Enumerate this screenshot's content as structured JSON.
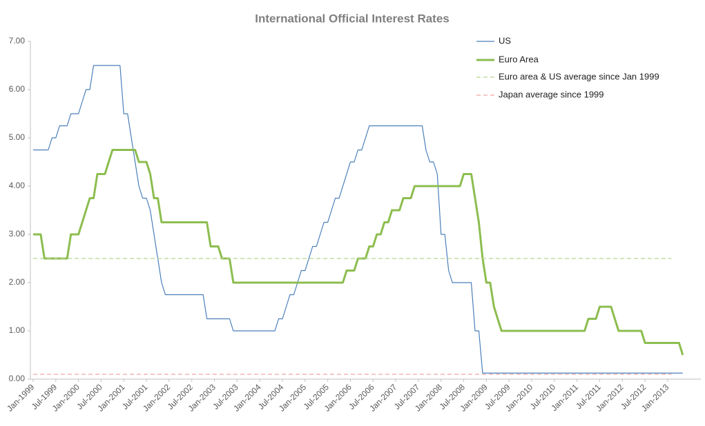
{
  "chart_data": {
    "type": "line",
    "title": "International Official Interest Rates",
    "categories": [
      "Jan-1999",
      null,
      null,
      null,
      null,
      null,
      "Jul-1999",
      null,
      null,
      null,
      null,
      null,
      "Jan-2000",
      null,
      null,
      null,
      null,
      null,
      "Jul-2000",
      null,
      null,
      null,
      null,
      null,
      "Jan-2001",
      null,
      null,
      null,
      null,
      null,
      "Jul-2001",
      null,
      null,
      null,
      null,
      null,
      "Jan-2002",
      null,
      null,
      null,
      null,
      null,
      "Jul-2002",
      null,
      null,
      null,
      null,
      null,
      "Jan-2003",
      null,
      null,
      null,
      null,
      null,
      "Jul-2003",
      null,
      null,
      null,
      null,
      null,
      "Jan-2004",
      null,
      null,
      null,
      null,
      null,
      "Jul-2004",
      null,
      null,
      null,
      null,
      null,
      "Jan-2005",
      null,
      null,
      null,
      null,
      null,
      "Jul-2005",
      null,
      null,
      null,
      null,
      null,
      "Jan-2006",
      null,
      null,
      null,
      null,
      null,
      "Jul-2006",
      null,
      null,
      null,
      null,
      null,
      "Jan-2007",
      null,
      null,
      null,
      null,
      null,
      "Jul-2007",
      null,
      null,
      null,
      null,
      null,
      "Jan-2008",
      null,
      null,
      null,
      null,
      null,
      "Jul-2008",
      null,
      null,
      null,
      null,
      null,
      "Jan-2009",
      null,
      null,
      null,
      null,
      null,
      "Jul-2009",
      null,
      null,
      null,
      null,
      null,
      "Jan-2010",
      null,
      null,
      null,
      null,
      null,
      "Jul-2010",
      null,
      null,
      null,
      null,
      null,
      "Jan-2011",
      null,
      null,
      null,
      null,
      null,
      "Jul-2011",
      null,
      null,
      null,
      null,
      null,
      "Jan-2012",
      null,
      null,
      null,
      null,
      null,
      "Jul-2012",
      null,
      null,
      null,
      null,
      null,
      "Jan-2013",
      null,
      null,
      null,
      null
    ],
    "series": [
      {
        "name": "US",
        "color": "#4a7ebb",
        "line_style": "solid",
        "values": [
          4.75,
          4.75,
          4.75,
          4.75,
          4.75,
          5,
          5,
          5.25,
          5.25,
          5.25,
          5.5,
          5.5,
          5.5,
          5.75,
          6,
          6,
          6.5,
          6.5,
          6.5,
          6.5,
          6.5,
          6.5,
          6.5,
          6.5,
          5.5,
          5.5,
          5,
          4.5,
          4,
          3.75,
          3.75,
          3.5,
          3,
          2.5,
          2,
          1.75,
          1.75,
          1.75,
          1.75,
          1.75,
          1.75,
          1.75,
          1.75,
          1.75,
          1.75,
          1.75,
          1.25,
          1.25,
          1.25,
          1.25,
          1.25,
          1.25,
          1.25,
          1,
          1,
          1,
          1,
          1,
          1,
          1,
          1,
          1,
          1,
          1,
          1,
          1.25,
          1.25,
          1.5,
          1.75,
          1.75,
          2,
          2.25,
          2.25,
          2.5,
          2.75,
          2.75,
          3,
          3.25,
          3.25,
          3.5,
          3.75,
          3.75,
          4,
          4.25,
          4.5,
          4.5,
          4.75,
          4.75,
          5,
          5.25,
          5.25,
          5.25,
          5.25,
          5.25,
          5.25,
          5.25,
          5.25,
          5.25,
          5.25,
          5.25,
          5.25,
          5.25,
          5.25,
          5.25,
          4.75,
          4.5,
          4.5,
          4.25,
          3,
          3,
          2.25,
          2,
          2,
          2,
          2,
          2,
          2,
          1,
          1,
          0.125,
          0.125,
          0.125,
          0.125,
          0.125,
          0.125,
          0.125,
          0.125,
          0.125,
          0.125,
          0.125,
          0.125,
          0.125,
          0.125,
          0.125,
          0.125,
          0.125,
          0.125,
          0.125,
          0.125,
          0.125,
          0.125,
          0.125,
          0.125,
          0.125,
          0.125,
          0.125,
          0.125,
          0.125,
          0.125,
          0.125,
          0.125,
          0.125,
          0.125,
          0.125,
          0.125,
          0.125,
          0.125,
          0.125,
          0.125,
          0.125,
          0.125,
          0.125,
          0.125,
          0.125,
          0.125,
          0.125,
          0.125,
          0.125,
          0.125,
          0.125,
          0.125,
          0.125,
          0.125
        ]
      },
      {
        "name": "Euro Area",
        "color": "#8cbd4f",
        "line_style": "solid",
        "values": [
          3,
          3,
          3,
          2.5,
          2.5,
          2.5,
          2.5,
          2.5,
          2.5,
          2.5,
          3,
          3,
          3,
          3.25,
          3.5,
          3.75,
          3.75,
          4.25,
          4.25,
          4.25,
          4.5,
          4.75,
          4.75,
          4.75,
          4.75,
          4.75,
          4.75,
          4.75,
          4.5,
          4.5,
          4.5,
          4.25,
          3.75,
          3.75,
          3.25,
          3.25,
          3.25,
          3.25,
          3.25,
          3.25,
          3.25,
          3.25,
          3.25,
          3.25,
          3.25,
          3.25,
          3.25,
          2.75,
          2.75,
          2.75,
          2.5,
          2.5,
          2.5,
          2,
          2,
          2,
          2,
          2,
          2,
          2,
          2,
          2,
          2,
          2,
          2,
          2,
          2,
          2,
          2,
          2,
          2,
          2,
          2,
          2,
          2,
          2,
          2,
          2,
          2,
          2,
          2,
          2,
          2,
          2.25,
          2.25,
          2.25,
          2.5,
          2.5,
          2.5,
          2.75,
          2.75,
          3,
          3,
          3.25,
          3.25,
          3.5,
          3.5,
          3.5,
          3.75,
          3.75,
          3.75,
          4,
          4,
          4,
          4,
          4,
          4,
          4,
          4,
          4,
          4,
          4,
          4,
          4,
          4.25,
          4.25,
          4.25,
          3.75,
          3.25,
          2.5,
          2,
          2,
          1.5,
          1.25,
          1,
          1,
          1,
          1,
          1,
          1,
          1,
          1,
          1,
          1,
          1,
          1,
          1,
          1,
          1,
          1,
          1,
          1,
          1,
          1,
          1,
          1,
          1,
          1.25,
          1.25,
          1.25,
          1.5,
          1.5,
          1.5,
          1.5,
          1.25,
          1,
          1,
          1,
          1,
          1,
          1,
          1,
          0.75,
          0.75,
          0.75,
          0.75,
          0.75,
          0.75,
          0.75,
          0.75,
          0.75,
          0.75,
          0.5
        ]
      },
      {
        "name": "Euro area & US average since Jan 1999",
        "color": "#b5d68e",
        "line_style": "dashed",
        "values": [
          2.5,
          2.5,
          2.5,
          2.5,
          2.5,
          2.5,
          2.5,
          2.5,
          2.5,
          2.5,
          2.5,
          2.5,
          2.5,
          2.5,
          2.5,
          2.5,
          2.5,
          2.5,
          2.5,
          2.5,
          2.5,
          2.5,
          2.5,
          2.5,
          2.5,
          2.5,
          2.5,
          2.5,
          2.5,
          2.5,
          2.5,
          2.5,
          2.5,
          2.5,
          2.5,
          2.5,
          2.5,
          2.5,
          2.5,
          2.5,
          2.5,
          2.5,
          2.5,
          2.5,
          2.5,
          2.5,
          2.5,
          2.5,
          2.5,
          2.5,
          2.5,
          2.5,
          2.5,
          2.5,
          2.5,
          2.5,
          2.5,
          2.5,
          2.5,
          2.5,
          2.5,
          2.5,
          2.5,
          2.5,
          2.5,
          2.5,
          2.5,
          2.5,
          2.5,
          2.5,
          2.5,
          2.5,
          2.5,
          2.5,
          2.5,
          2.5,
          2.5,
          2.5,
          2.5,
          2.5,
          2.5,
          2.5,
          2.5,
          2.5,
          2.5,
          2.5,
          2.5,
          2.5,
          2.5,
          2.5,
          2.5,
          2.5,
          2.5,
          2.5,
          2.5,
          2.5,
          2.5,
          2.5,
          2.5,
          2.5,
          2.5,
          2.5,
          2.5,
          2.5,
          2.5,
          2.5,
          2.5,
          2.5,
          2.5,
          2.5,
          2.5,
          2.5,
          2.5,
          2.5,
          2.5,
          2.5,
          2.5,
          2.5,
          2.5,
          2.5,
          2.5,
          2.5,
          2.5,
          2.5,
          2.5,
          2.5,
          2.5,
          2.5,
          2.5,
          2.5,
          2.5,
          2.5,
          2.5,
          2.5,
          2.5,
          2.5,
          2.5,
          2.5,
          2.5,
          2.5,
          2.5,
          2.5,
          2.5,
          2.5,
          2.5,
          2.5,
          2.5,
          2.5,
          2.5,
          2.5,
          2.5,
          2.5,
          2.5,
          2.5,
          2.5,
          2.5,
          2.5,
          2.5,
          2.5,
          2.5,
          2.5,
          2.5,
          2.5,
          2.5,
          2.5,
          2.5,
          2.5,
          2.5,
          2.5,
          2.5,
          null,
          null,
          null
        ]
      },
      {
        "name": "Japan average since 1999",
        "color": "#f2a5a5",
        "line_style": "dashed",
        "values": [
          0.1,
          0.1,
          0.1,
          0.1,
          0.1,
          0.1,
          0.1,
          0.1,
          0.1,
          0.1,
          0.1,
          0.1,
          0.1,
          0.1,
          0.1,
          0.1,
          0.1,
          0.1,
          0.1,
          0.1,
          0.1,
          0.1,
          0.1,
          0.1,
          0.1,
          0.1,
          0.1,
          0.1,
          0.1,
          0.1,
          0.1,
          0.1,
          0.1,
          0.1,
          0.1,
          0.1,
          0.1,
          0.1,
          0.1,
          0.1,
          0.1,
          0.1,
          0.1,
          0.1,
          0.1,
          0.1,
          0.1,
          0.1,
          0.1,
          0.1,
          0.1,
          0.1,
          0.1,
          0.1,
          0.1,
          0.1,
          0.1,
          0.1,
          0.1,
          0.1,
          0.1,
          0.1,
          0.1,
          0.1,
          0.1,
          0.1,
          0.1,
          0.1,
          0.1,
          0.1,
          0.1,
          0.1,
          0.1,
          0.1,
          0.1,
          0.1,
          0.1,
          0.1,
          0.1,
          0.1,
          0.1,
          0.1,
          0.1,
          0.1,
          0.1,
          0.1,
          0.1,
          0.1,
          0.1,
          0.1,
          0.1,
          0.1,
          0.1,
          0.1,
          0.1,
          0.1,
          0.1,
          0.1,
          0.1,
          0.1,
          0.1,
          0.1,
          0.1,
          0.1,
          0.1,
          0.1,
          0.1,
          0.1,
          0.1,
          0.1,
          0.1,
          0.1,
          0.1,
          0.1,
          0.1,
          0.1,
          0.1,
          0.1,
          0.1,
          0.1,
          0.1,
          0.1,
          0.1,
          0.1,
          0.1,
          0.1,
          0.1,
          0.1,
          0.1,
          0.1,
          0.1,
          0.1,
          0.1,
          0.1,
          0.1,
          0.1,
          0.1,
          0.1,
          0.1,
          0.1,
          0.1,
          0.1,
          0.1,
          0.1,
          0.1,
          0.1,
          0.1,
          0.1,
          0.1,
          0.1,
          0.1,
          0.1,
          0.1,
          0.1,
          0.1,
          0.1,
          0.1,
          0.1,
          0.1,
          0.1,
          0.1,
          0.1,
          0.1,
          0.1,
          0.1,
          0.1,
          0.1,
          0.1,
          0.1,
          0.1,
          null,
          null,
          null
        ]
      }
    ],
    "ylim": [
      0,
      7
    ],
    "yticks": [
      {
        "value": 0,
        "label": "0.00"
      },
      {
        "value": 1,
        "label": "1.00"
      },
      {
        "value": 2,
        "label": "2.00"
      },
      {
        "value": 3,
        "label": "3.00"
      },
      {
        "value": 4,
        "label": "4.00"
      },
      {
        "value": 5,
        "label": "5.00"
      },
      {
        "value": 6,
        "label": "6.00"
      },
      {
        "value": 7,
        "label": "7.00"
      }
    ],
    "grid": false,
    "legend": "top-right"
  }
}
